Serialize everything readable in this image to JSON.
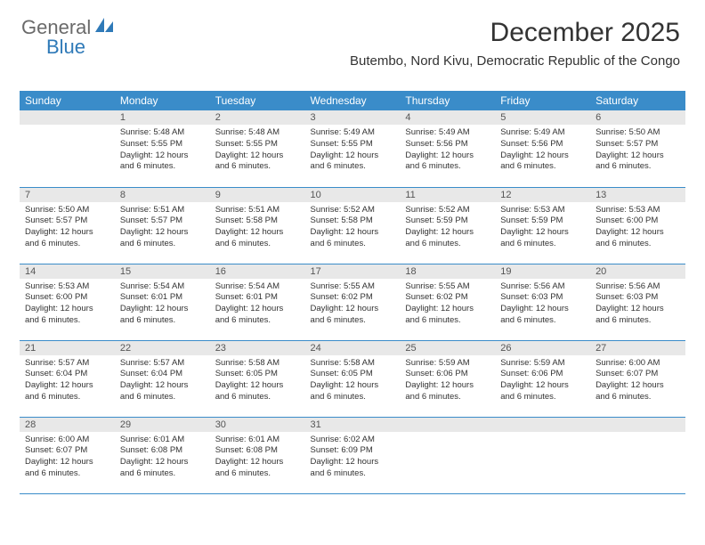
{
  "brand": {
    "part1": "General",
    "part2": "Blue"
  },
  "header": {
    "month_title": "December 2025",
    "location": "Butembo, Nord Kivu, Democratic Republic of the Congo"
  },
  "style": {
    "header_bg": "#3a8cc9",
    "header_fg": "#ffffff",
    "daynum_bg": "#e8e8e8",
    "row_border": "#3a8cc9",
    "body_bg": "#ffffff",
    "text_color": "#333333",
    "brand_gray": "#6a6a6a",
    "brand_blue": "#2f7ab8",
    "month_title_fontsize": 30,
    "location_fontsize": 15,
    "weekday_fontsize": 12,
    "daynum_fontsize": 11,
    "cell_fontsize": 9.5
  },
  "weekdays": [
    "Sunday",
    "Monday",
    "Tuesday",
    "Wednesday",
    "Thursday",
    "Friday",
    "Saturday"
  ],
  "weeks": [
    [
      {
        "n": "",
        "sr": "",
        "ss": "",
        "dl": ""
      },
      {
        "n": "1",
        "sr": "Sunrise: 5:48 AM",
        "ss": "Sunset: 5:55 PM",
        "dl": "Daylight: 12 hours and 6 minutes."
      },
      {
        "n": "2",
        "sr": "Sunrise: 5:48 AM",
        "ss": "Sunset: 5:55 PM",
        "dl": "Daylight: 12 hours and 6 minutes."
      },
      {
        "n": "3",
        "sr": "Sunrise: 5:49 AM",
        "ss": "Sunset: 5:55 PM",
        "dl": "Daylight: 12 hours and 6 minutes."
      },
      {
        "n": "4",
        "sr": "Sunrise: 5:49 AM",
        "ss": "Sunset: 5:56 PM",
        "dl": "Daylight: 12 hours and 6 minutes."
      },
      {
        "n": "5",
        "sr": "Sunrise: 5:49 AM",
        "ss": "Sunset: 5:56 PM",
        "dl": "Daylight: 12 hours and 6 minutes."
      },
      {
        "n": "6",
        "sr": "Sunrise: 5:50 AM",
        "ss": "Sunset: 5:57 PM",
        "dl": "Daylight: 12 hours and 6 minutes."
      }
    ],
    [
      {
        "n": "7",
        "sr": "Sunrise: 5:50 AM",
        "ss": "Sunset: 5:57 PM",
        "dl": "Daylight: 12 hours and 6 minutes."
      },
      {
        "n": "8",
        "sr": "Sunrise: 5:51 AM",
        "ss": "Sunset: 5:57 PM",
        "dl": "Daylight: 12 hours and 6 minutes."
      },
      {
        "n": "9",
        "sr": "Sunrise: 5:51 AM",
        "ss": "Sunset: 5:58 PM",
        "dl": "Daylight: 12 hours and 6 minutes."
      },
      {
        "n": "10",
        "sr": "Sunrise: 5:52 AM",
        "ss": "Sunset: 5:58 PM",
        "dl": "Daylight: 12 hours and 6 minutes."
      },
      {
        "n": "11",
        "sr": "Sunrise: 5:52 AM",
        "ss": "Sunset: 5:59 PM",
        "dl": "Daylight: 12 hours and 6 minutes."
      },
      {
        "n": "12",
        "sr": "Sunrise: 5:53 AM",
        "ss": "Sunset: 5:59 PM",
        "dl": "Daylight: 12 hours and 6 minutes."
      },
      {
        "n": "13",
        "sr": "Sunrise: 5:53 AM",
        "ss": "Sunset: 6:00 PM",
        "dl": "Daylight: 12 hours and 6 minutes."
      }
    ],
    [
      {
        "n": "14",
        "sr": "Sunrise: 5:53 AM",
        "ss": "Sunset: 6:00 PM",
        "dl": "Daylight: 12 hours and 6 minutes."
      },
      {
        "n": "15",
        "sr": "Sunrise: 5:54 AM",
        "ss": "Sunset: 6:01 PM",
        "dl": "Daylight: 12 hours and 6 minutes."
      },
      {
        "n": "16",
        "sr": "Sunrise: 5:54 AM",
        "ss": "Sunset: 6:01 PM",
        "dl": "Daylight: 12 hours and 6 minutes."
      },
      {
        "n": "17",
        "sr": "Sunrise: 5:55 AM",
        "ss": "Sunset: 6:02 PM",
        "dl": "Daylight: 12 hours and 6 minutes."
      },
      {
        "n": "18",
        "sr": "Sunrise: 5:55 AM",
        "ss": "Sunset: 6:02 PM",
        "dl": "Daylight: 12 hours and 6 minutes."
      },
      {
        "n": "19",
        "sr": "Sunrise: 5:56 AM",
        "ss": "Sunset: 6:03 PM",
        "dl": "Daylight: 12 hours and 6 minutes."
      },
      {
        "n": "20",
        "sr": "Sunrise: 5:56 AM",
        "ss": "Sunset: 6:03 PM",
        "dl": "Daylight: 12 hours and 6 minutes."
      }
    ],
    [
      {
        "n": "21",
        "sr": "Sunrise: 5:57 AM",
        "ss": "Sunset: 6:04 PM",
        "dl": "Daylight: 12 hours and 6 minutes."
      },
      {
        "n": "22",
        "sr": "Sunrise: 5:57 AM",
        "ss": "Sunset: 6:04 PM",
        "dl": "Daylight: 12 hours and 6 minutes."
      },
      {
        "n": "23",
        "sr": "Sunrise: 5:58 AM",
        "ss": "Sunset: 6:05 PM",
        "dl": "Daylight: 12 hours and 6 minutes."
      },
      {
        "n": "24",
        "sr": "Sunrise: 5:58 AM",
        "ss": "Sunset: 6:05 PM",
        "dl": "Daylight: 12 hours and 6 minutes."
      },
      {
        "n": "25",
        "sr": "Sunrise: 5:59 AM",
        "ss": "Sunset: 6:06 PM",
        "dl": "Daylight: 12 hours and 6 minutes."
      },
      {
        "n": "26",
        "sr": "Sunrise: 5:59 AM",
        "ss": "Sunset: 6:06 PM",
        "dl": "Daylight: 12 hours and 6 minutes."
      },
      {
        "n": "27",
        "sr": "Sunrise: 6:00 AM",
        "ss": "Sunset: 6:07 PM",
        "dl": "Daylight: 12 hours and 6 minutes."
      }
    ],
    [
      {
        "n": "28",
        "sr": "Sunrise: 6:00 AM",
        "ss": "Sunset: 6:07 PM",
        "dl": "Daylight: 12 hours and 6 minutes."
      },
      {
        "n": "29",
        "sr": "Sunrise: 6:01 AM",
        "ss": "Sunset: 6:08 PM",
        "dl": "Daylight: 12 hours and 6 minutes."
      },
      {
        "n": "30",
        "sr": "Sunrise: 6:01 AM",
        "ss": "Sunset: 6:08 PM",
        "dl": "Daylight: 12 hours and 6 minutes."
      },
      {
        "n": "31",
        "sr": "Sunrise: 6:02 AM",
        "ss": "Sunset: 6:09 PM",
        "dl": "Daylight: 12 hours and 6 minutes."
      },
      {
        "n": "",
        "sr": "",
        "ss": "",
        "dl": ""
      },
      {
        "n": "",
        "sr": "",
        "ss": "",
        "dl": ""
      },
      {
        "n": "",
        "sr": "",
        "ss": "",
        "dl": ""
      }
    ]
  ]
}
